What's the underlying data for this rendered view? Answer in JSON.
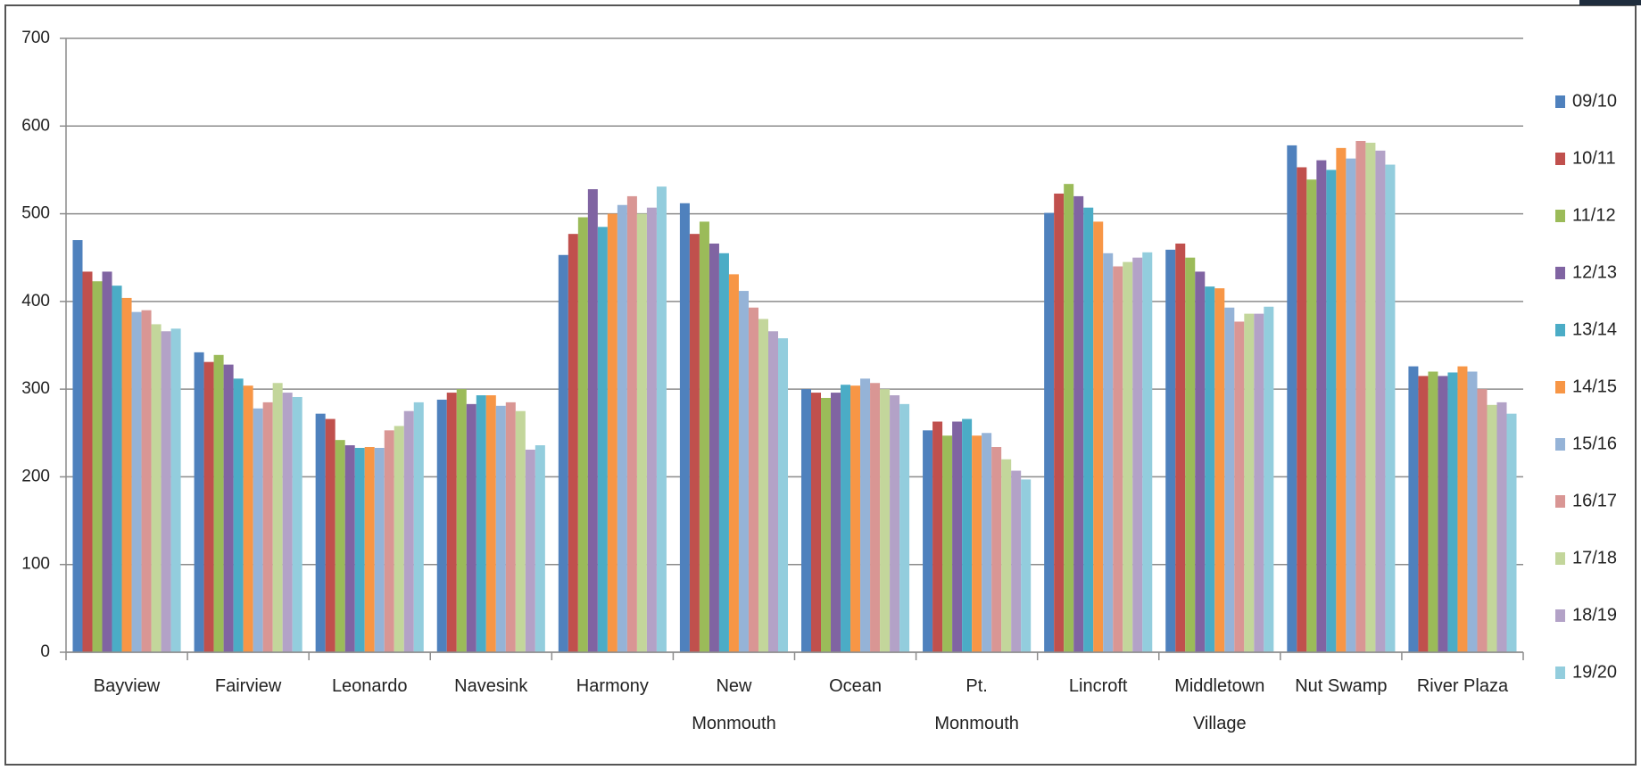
{
  "chart_data": {
    "type": "bar",
    "categories": [
      "Bayview",
      "Fairview",
      "Leonardo",
      "Navesink",
      "Harmony",
      "New Monmouth",
      "Ocean",
      "Pt. Monmouth",
      "Lincroft",
      "Middletown Village",
      "Nut Swamp",
      "River Plaza"
    ],
    "series": [
      {
        "name": "09/10",
        "color": "#4F81BD",
        "values": [
          470,
          342,
          272,
          288,
          453,
          512,
          300,
          253,
          501,
          459,
          578,
          326
        ]
      },
      {
        "name": "10/11",
        "color": "#C0504D",
        "values": [
          434,
          331,
          266,
          296,
          477,
          477,
          296,
          263,
          523,
          466,
          553,
          315
        ]
      },
      {
        "name": "11/12",
        "color": "#9BBB59",
        "values": [
          423,
          339,
          242,
          300,
          496,
          491,
          290,
          247,
          534,
          450,
          539,
          320
        ]
      },
      {
        "name": "12/13",
        "color": "#8064A2",
        "values": [
          434,
          328,
          236,
          283,
          528,
          466,
          296,
          263,
          520,
          434,
          561,
          315
        ]
      },
      {
        "name": "13/14",
        "color": "#4BACC6",
        "values": [
          418,
          312,
          233,
          293,
          485,
          455,
          305,
          266,
          507,
          417,
          550,
          319
        ]
      },
      {
        "name": "14/15",
        "color": "#F79646",
        "values": [
          404,
          304,
          234,
          293,
          500,
          431,
          304,
          247,
          491,
          415,
          575,
          326
        ]
      },
      {
        "name": "15/16",
        "color": "#95B3D7",
        "values": [
          388,
          278,
          233,
          281,
          510,
          412,
          312,
          250,
          455,
          393,
          563,
          320
        ]
      },
      {
        "name": "16/17",
        "color": "#D99694",
        "values": [
          390,
          285,
          253,
          285,
          520,
          393,
          307,
          234,
          440,
          377,
          583,
          300
        ]
      },
      {
        "name": "17/18",
        "color": "#C3D69B",
        "values": [
          374,
          307,
          258,
          275,
          500,
          380,
          300,
          220,
          445,
          386,
          581,
          282
        ]
      },
      {
        "name": "18/19",
        "color": "#B3A2C7",
        "values": [
          366,
          296,
          275,
          231,
          507,
          366,
          293,
          207,
          450,
          386,
          572,
          285
        ]
      },
      {
        "name": "19/20",
        "color": "#93CDDD",
        "values": [
          369,
          291,
          285,
          236,
          531,
          358,
          283,
          197,
          456,
          394,
          556,
          272
        ]
      }
    ],
    "ylim": [
      0,
      700
    ],
    "yticks": [
      0,
      100,
      200,
      300,
      400,
      500,
      600,
      700
    ],
    "grid": true,
    "legend": "right"
  }
}
